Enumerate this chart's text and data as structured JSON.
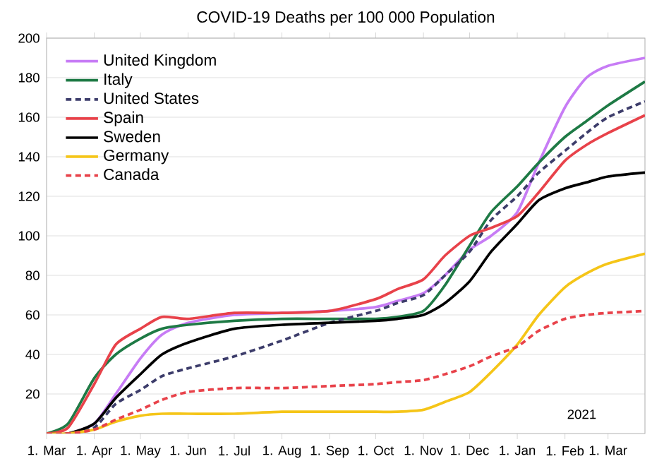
{
  "chart_data": {
    "type": "line",
    "title": "COVID-19 Deaths per 100 000 Population",
    "x": [
      "2020-03-01",
      "2020-03-15",
      "2020-04-01",
      "2020-04-15",
      "2020-05-01",
      "2020-05-15",
      "2020-06-01",
      "2020-07-01",
      "2020-08-01",
      "2020-09-01",
      "2020-10-01",
      "2020-10-15",
      "2020-11-01",
      "2020-11-15",
      "2020-12-01",
      "2020-12-15",
      "2021-01-01",
      "2021-01-15",
      "2021-02-01",
      "2021-02-15",
      "2021-03-01",
      "2021-03-25"
    ],
    "series": [
      {
        "name": "United Kingdom",
        "color": "#c77cf5",
        "values": [
          0,
          0,
          5,
          20,
          38,
          50,
          56,
          60,
          61,
          62,
          64,
          67,
          71,
          80,
          93,
          100,
          112,
          137,
          165,
          180,
          186,
          190
        ]
      },
      {
        "name": "Italy",
        "color": "#1e7a45",
        "values": [
          0,
          5,
          28,
          40,
          48,
          53,
          55,
          57,
          58,
          58,
          58,
          59,
          62,
          75,
          95,
          112,
          125,
          137,
          150,
          158,
          166,
          178
        ]
      },
      {
        "name": "United States",
        "color": "#3d3d6b",
        "line_style": "dashed",
        "values": [
          0,
          0,
          3,
          15,
          22,
          29,
          33,
          39,
          47,
          56,
          62,
          66,
          70,
          80,
          92,
          108,
          120,
          132,
          143,
          152,
          160,
          168
        ]
      },
      {
        "name": "Spain",
        "color": "#e8424a",
        "values": [
          0,
          3,
          25,
          45,
          53,
          59,
          58,
          61,
          61,
          62,
          68,
          73,
          78,
          90,
          100,
          104,
          110,
          122,
          138,
          146,
          152,
          161
        ]
      },
      {
        "name": "Sweden",
        "color": "#000000",
        "values": [
          0,
          0,
          5,
          18,
          30,
          40,
          46,
          53,
          55,
          56,
          57,
          58,
          60,
          66,
          77,
          92,
          106,
          118,
          124,
          127,
          130,
          132
        ]
      },
      {
        "name": "Germany",
        "color": "#f5c518",
        "values": [
          0,
          0,
          2,
          6,
          9,
          10,
          10,
          10,
          11,
          11,
          11,
          11,
          12,
          16,
          21,
          31,
          45,
          60,
          74,
          81,
          86,
          91
        ]
      },
      {
        "name": "Canada",
        "color": "#e8424a",
        "line_style": "dashed",
        "values": [
          0,
          0,
          2,
          7,
          12,
          17,
          21,
          23,
          23,
          24,
          25,
          26,
          27,
          30,
          34,
          39,
          44,
          52,
          58,
          60,
          61,
          62
        ]
      }
    ],
    "xlim": [
      "2020-03-01",
      "2021-03-25"
    ],
    "xticks": [
      {
        "value": "2020-03-01",
        "label": "1. Mar"
      },
      {
        "value": "2020-04-01",
        "label": "1. Apr"
      },
      {
        "value": "2020-05-01",
        "label": "1. May"
      },
      {
        "value": "2020-06-01",
        "label": "1. Jun"
      },
      {
        "value": "2020-07-01",
        "label": "1. Jul"
      },
      {
        "value": "2020-08-01",
        "label": "1. Aug"
      },
      {
        "value": "2020-09-01",
        "label": "1. Sep"
      },
      {
        "value": "2020-10-01",
        "label": "1. Oct"
      },
      {
        "value": "2020-11-01",
        "label": "1. Nov"
      },
      {
        "value": "2020-12-01",
        "label": "1. Dec"
      },
      {
        "value": "2021-01-01",
        "label": "1. Jan"
      },
      {
        "value": "2021-02-01",
        "label": "1. Feb"
      },
      {
        "value": "2021-03-01",
        "label": "1. Mar"
      }
    ],
    "ylim": [
      0,
      200
    ],
    "yticks": [
      20,
      40,
      60,
      80,
      100,
      120,
      140,
      160,
      180,
      200
    ],
    "grid": "y",
    "legend": "top left",
    "annotations": [
      "2021"
    ]
  }
}
